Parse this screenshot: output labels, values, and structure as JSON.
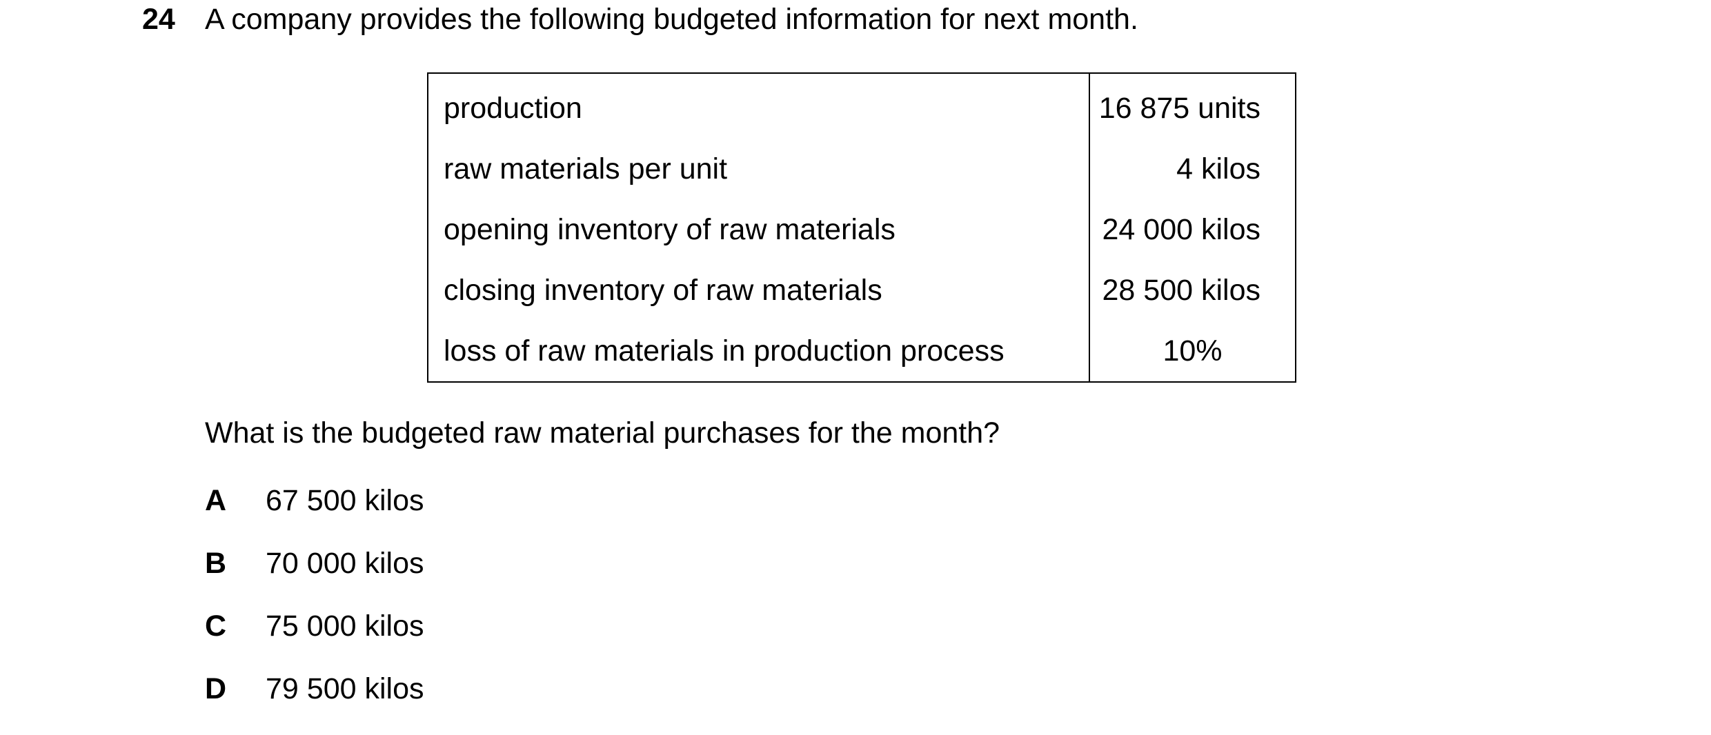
{
  "question": {
    "number": "24",
    "stem": "A company provides the following budgeted information for next month.",
    "prompt": "What is the budgeted raw material purchases for the month?"
  },
  "table": {
    "rows": [
      {
        "label": "production",
        "value": "16 875 units"
      },
      {
        "label": "raw materials per unit",
        "value": "4 kilos"
      },
      {
        "label": "opening inventory of raw materials",
        "value": "24 000 kilos"
      },
      {
        "label": "closing inventory of raw materials",
        "value": "28 500 kilos"
      },
      {
        "label": "loss of raw materials in production process",
        "value": "10%"
      }
    ]
  },
  "options": [
    {
      "letter": "A",
      "text": "67 500 kilos"
    },
    {
      "letter": "B",
      "text": "70 000 kilos"
    },
    {
      "letter": "C",
      "text": "75 000 kilos"
    },
    {
      "letter": "D",
      "text": "79 500 kilos"
    }
  ]
}
